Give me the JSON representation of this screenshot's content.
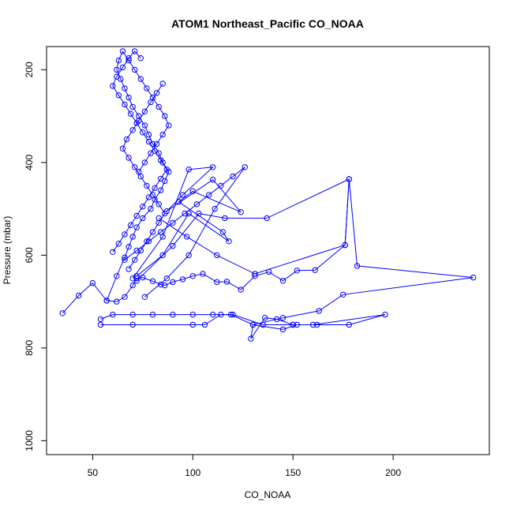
{
  "chart_data": {
    "type": "line",
    "title": "ATOM1 Northeast_Pacific CO_NOAA",
    "xlabel": "CO_NOAA",
    "ylabel": "Pressure (mbar)",
    "xlim": [
      27,
      248
    ],
    "ylim": [
      1030,
      150
    ],
    "y_reversed": true,
    "x_ticks": [
      50,
      100,
      150,
      200
    ],
    "y_ticks": [
      200,
      400,
      600,
      800,
      1000
    ],
    "grid": false,
    "marker": "open-circle",
    "color": "#0000ff",
    "series": [
      {
        "x": [
          35,
          43,
          50,
          57,
          62,
          66,
          70,
          72,
          75,
          80,
          84,
          86,
          90,
          95,
          100,
          105,
          112,
          117,
          124,
          131,
          138,
          145,
          152,
          161,
          176,
          178,
          182,
          240,
          175,
          163,
          145,
          130,
          129,
          136,
          142,
          150,
          162,
          178,
          196,
          160,
          150,
          135,
          120,
          110,
          100,
          90,
          80,
          70,
          60,
          54
        ],
        "y": [
          725,
          687,
          660,
          698,
          700,
          690,
          665,
          650,
          648,
          656,
          663,
          665,
          658,
          652,
          645,
          640,
          658,
          657,
          674,
          645,
          636,
          655,
          633,
          632,
          578,
          436,
          623,
          648,
          685,
          720,
          735,
          750,
          780,
          735,
          738,
          750,
          750,
          750,
          728,
          750,
          750,
          750,
          728,
          728,
          728,
          728,
          728,
          728,
          728,
          738
        ]
      },
      {
        "x": [
          54,
          70,
          100,
          106,
          114,
          119,
          130,
          145,
          152
        ],
        "y": [
          750,
          750,
          750,
          750,
          728,
          728,
          750,
          760,
          750
        ]
      },
      {
        "x": [
          57,
          62,
          66,
          68,
          70,
          72,
          75,
          79,
          81,
          84,
          86,
          88,
          85,
          83,
          80,
          78,
          76,
          73,
          70,
          68,
          66,
          64,
          62,
          63,
          65,
          68,
          71,
          74,
          77,
          80,
          83,
          86,
          88,
          85,
          82,
          79,
          76,
          73
        ],
        "y": [
          698,
          645,
          605,
          582,
          560,
          540,
          520,
          500,
          480,
          460,
          440,
          420,
          400,
          380,
          360,
          340,
          320,
          300,
          280,
          260,
          240,
          220,
          200,
          180,
          160,
          180,
          200,
          220,
          240,
          260,
          280,
          300,
          320,
          340,
          360,
          380,
          400,
          420
        ]
      },
      {
        "x": [
          60,
          63,
          66,
          69,
          72,
          75,
          78,
          81,
          84,
          87,
          84,
          81,
          78,
          75,
          72,
          69,
          66,
          63,
          60,
          62,
          65,
          68,
          71,
          74
        ],
        "y": [
          593,
          575,
          555,
          535,
          515,
          495,
          475,
          455,
          435,
          415,
          395,
          375,
          355,
          335,
          315,
          295,
          275,
          255,
          235,
          215,
          195,
          175,
          160,
          175
        ]
      },
      {
        "x": [
          68,
          71,
          74,
          77,
          80,
          83,
          86,
          83,
          80,
          77,
          74,
          71,
          68,
          65,
          67,
          70,
          73,
          76,
          79,
          82,
          85
        ],
        "y": [
          630,
          610,
          590,
          570,
          550,
          530,
          510,
          490,
          470,
          450,
          430,
          410,
          390,
          370,
          350,
          330,
          310,
          290,
          270,
          250,
          230
        ]
      },
      {
        "x": [
          70,
          85,
          98,
          110,
          95,
          87,
          110,
          124,
          100,
          93,
          115,
          118,
          98,
          85,
          72
        ],
        "y": [
          650,
          560,
          415,
          410,
          470,
          505,
          437,
          507,
          462,
          485,
          550,
          570,
          510,
          600,
          645
        ]
      },
      {
        "x": [
          72,
          90,
          103,
          116,
          137,
          178,
          176,
          131,
          112,
          97,
          83
        ],
        "y": [
          655,
          580,
          510,
          520,
          520,
          436,
          578,
          640,
          600,
          560,
          520
        ]
      },
      {
        "x": [
          66,
          72,
          78,
          84,
          90,
          96,
          102,
          108,
          114,
          120,
          126,
          111,
          98,
          87,
          76
        ],
        "y": [
          610,
          590,
          570,
          550,
          530,
          510,
          490,
          470,
          450,
          430,
          410,
          500,
          600,
          650,
          690
        ]
      }
    ]
  }
}
